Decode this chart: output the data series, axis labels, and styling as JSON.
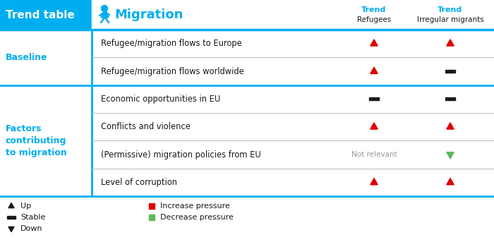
{
  "title_box": "Trend table",
  "section_title": "Migration",
  "col1_header_top": "Trend",
  "col1_header_bot": "Refugees",
  "col2_header_top": "Trend",
  "col2_header_bot": "Irregular migrants",
  "blue": "#00AEEF",
  "red": "#E00000",
  "green": "#5CB85C",
  "black": "#1A1A1A",
  "gray": "#999999",
  "light_gray": "#BBBBBB",
  "white": "#FFFFFF",
  "rows": [
    {
      "label": "Refugee/migration flows to Europe",
      "col1": "up_red",
      "col2": "up_red"
    },
    {
      "label": "Refugee/migration flows worldwide",
      "col1": "up_red",
      "col2": "stable_black"
    },
    {
      "label": "Economic opportunities in EU",
      "col1": "stable_black",
      "col2": "stable_black"
    },
    {
      "label": "Conflicts and violence",
      "col1": "up_red",
      "col2": "up_red"
    },
    {
      "label": "(Permissive) migration policies from EU",
      "col1": "not_relevant",
      "col2": "down_green"
    },
    {
      "label": "Level of corruption",
      "col1": "up_red",
      "col2": "up_red"
    }
  ]
}
